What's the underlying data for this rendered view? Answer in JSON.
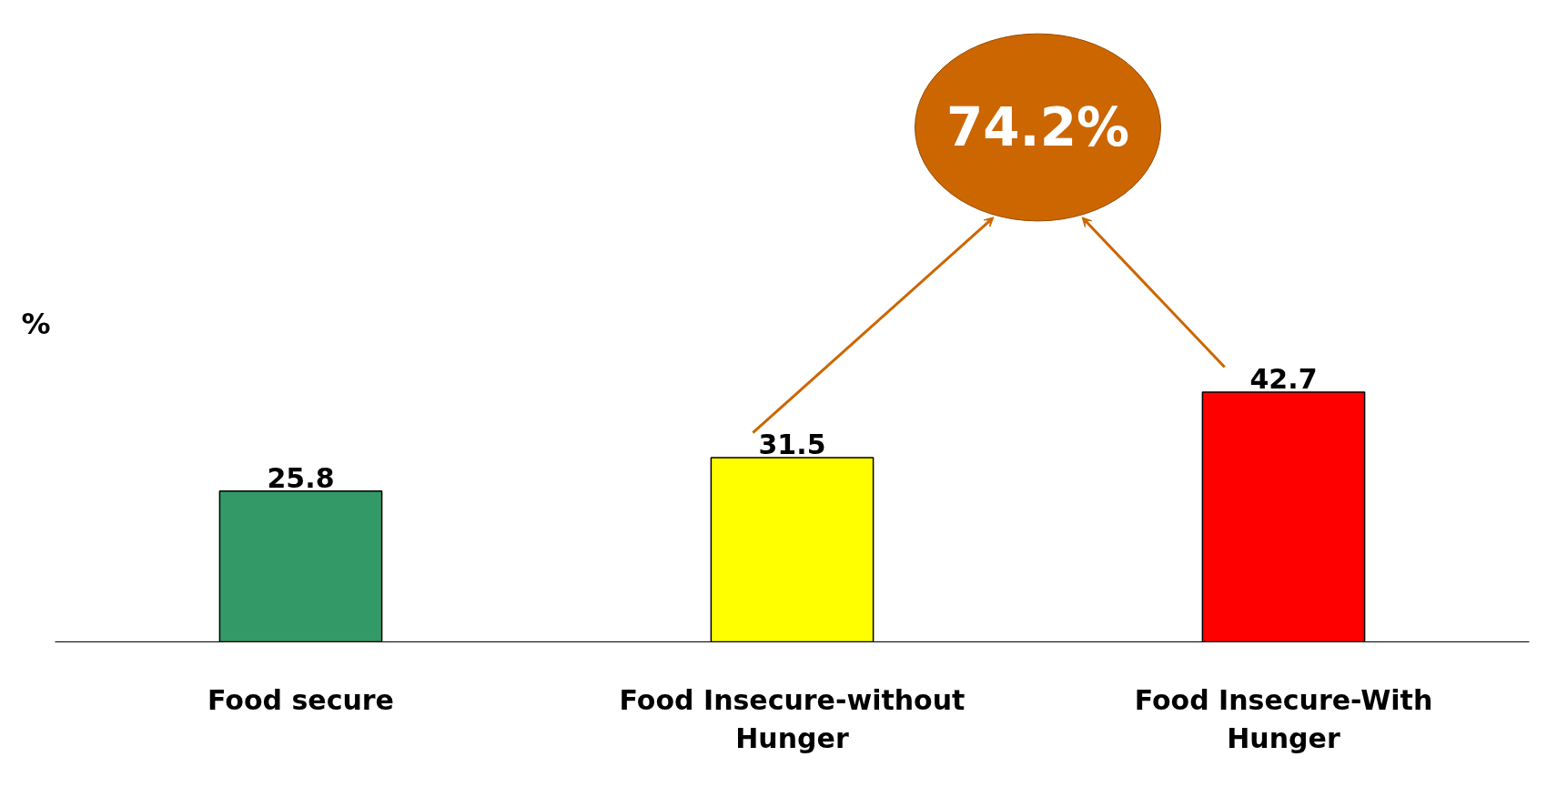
{
  "chart_data": {
    "type": "bar",
    "ylabel": "%",
    "categories": [
      "Food secure",
      "Food Insecure-without Hunger",
      "Food Insecure-With Hunger"
    ],
    "values": [
      25.8,
      31.5,
      42.7
    ],
    "colors": [
      "#339966",
      "#ffff00",
      "#ff0000"
    ],
    "data_labels": true,
    "grid": false,
    "annotations": [
      "74.2%"
    ]
  }
}
